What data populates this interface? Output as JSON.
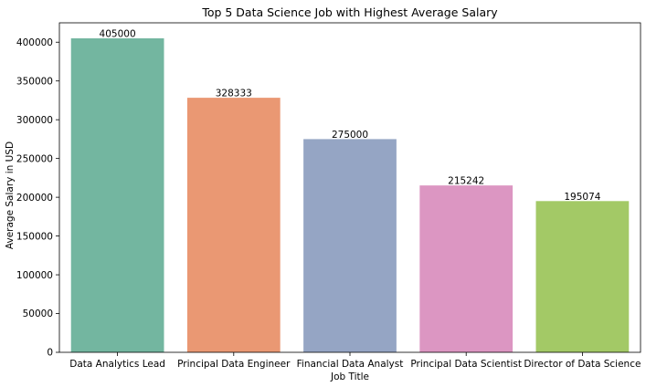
{
  "chart_data": {
    "type": "bar",
    "title": "Top 5 Data Science Job with Highest Average Salary",
    "xlabel": "Job Title",
    "ylabel": "Average Salary in USD",
    "categories": [
      "Data Analytics Lead",
      "Principal Data Engineer",
      "Financial Data Analyst",
      "Principal Data Scientist",
      "Director of Data Science"
    ],
    "values": [
      405000,
      328333,
      275000,
      215242,
      195074
    ],
    "data_labels": [
      "405000",
      "328333",
      "275000",
      "215242",
      "195074"
    ],
    "colors": [
      "#73b6a0",
      "#ea9873",
      "#95a5c4",
      "#dc96c2",
      "#a3c966"
    ],
    "ylim": [
      0,
      425000
    ],
    "yticks": [
      0,
      50000,
      100000,
      150000,
      200000,
      250000,
      300000,
      350000,
      400000
    ],
    "grid": false,
    "legend": "none"
  }
}
